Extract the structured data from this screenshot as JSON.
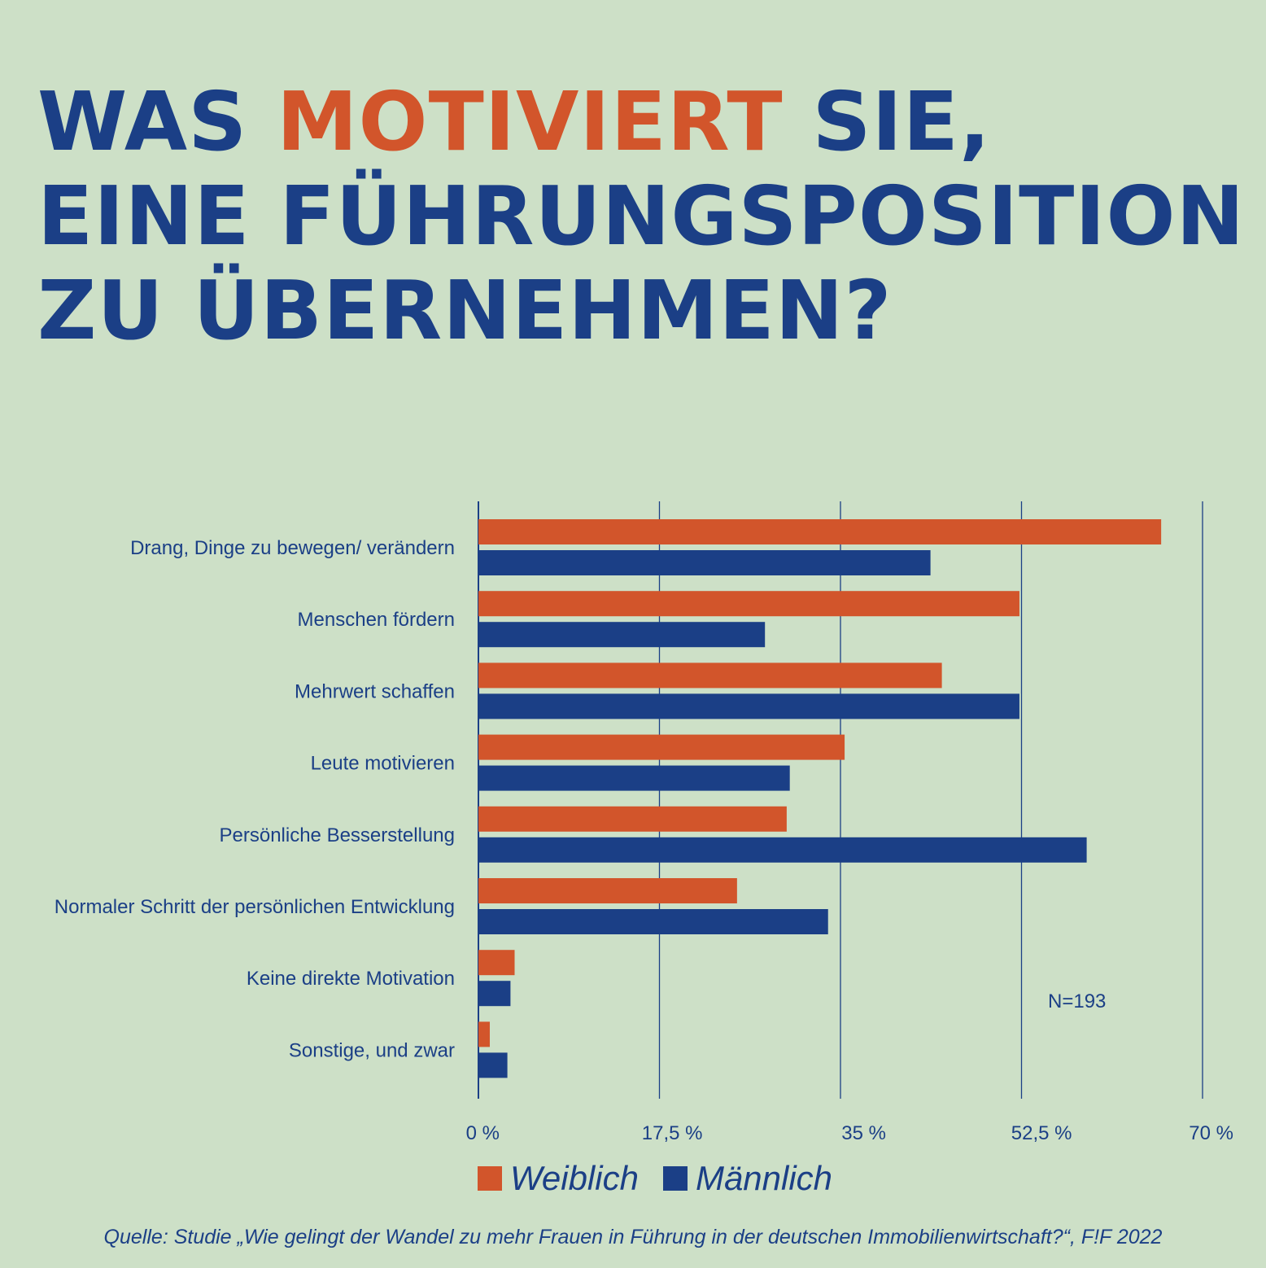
{
  "title": {
    "line1_pre": "WAS ",
    "line1_accent": "MOTIVIERT",
    "line1_post": " SIE,",
    "line2": "EINE FÜHRUNGSPOSITION",
    "line3": "ZU ÜBERNEHMEN?"
  },
  "colors": {
    "weiblich": "#d2552b",
    "maennlich": "#1b3f86",
    "background": "#cde0c7"
  },
  "chart_data": {
    "type": "bar",
    "orientation": "horizontal",
    "categories": [
      "Drang, Dinge zu  bewegen/ verändern",
      "Menschen fördern",
      "Mehrwert schaffen",
      "Leute motivieren",
      "Persönliche Besserstellung",
      "Normaler Schritt der persönlichen Entwicklung",
      "Keine direkte Motivation",
      "Sonstige, und zwar"
    ],
    "series": [
      {
        "name": "Weiblich",
        "values": [
          66.0,
          52.3,
          44.8,
          35.4,
          29.8,
          25.0,
          3.5,
          1.1
        ]
      },
      {
        "name": "Männlich",
        "values": [
          43.7,
          27.7,
          52.3,
          30.1,
          58.8,
          33.8,
          3.1,
          2.8
        ]
      }
    ],
    "xlim": [
      0,
      70
    ],
    "xticks": [
      0,
      17.5,
      35,
      52.5,
      70
    ],
    "xtick_labels": [
      "0 %",
      "17,5  %",
      "35  %",
      "52,5  %",
      "70 %"
    ],
    "grid": true,
    "legend_position": "bottom",
    "annotation": "N=193"
  },
  "legend": {
    "weiblich": "Weiblich",
    "maennlich": "Männlich"
  },
  "source": "Quelle: Studie „Wie gelingt der Wandel zu mehr Frauen in Führung in der deutschen Immobilienwirtschaft?“, F!F 2022"
}
